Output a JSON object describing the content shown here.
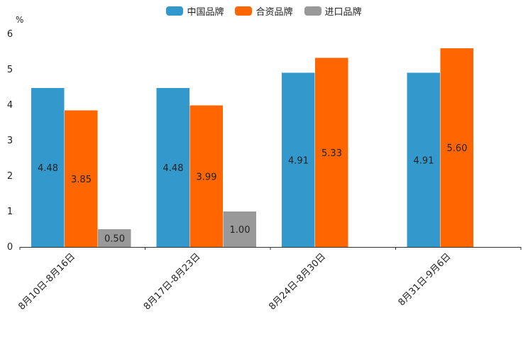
{
  "chart_data": {
    "type": "bar",
    "title": "",
    "xlabel": "",
    "ylabel": "%",
    "ylim": [
      0,
      6
    ],
    "yticks": [
      0,
      1,
      2,
      3,
      4,
      5,
      6
    ],
    "categories": [
      "8月10日-8月16日",
      "8月17日-8月23日",
      "8月24日-8月30日",
      "8月31日-9月6日"
    ],
    "series": [
      {
        "name": "中国品牌",
        "color": "#3399cc",
        "values": [
          4.48,
          4.48,
          4.91,
          4.91
        ],
        "labels": [
          "4.48",
          "4.48",
          "4.91",
          "4.91"
        ]
      },
      {
        "name": "合资品牌",
        "color": "#ff6600",
        "values": [
          3.85,
          3.99,
          5.33,
          5.6
        ],
        "labels": [
          "3.85",
          "3.99",
          "5.33",
          "5.60"
        ]
      },
      {
        "name": "进口品牌",
        "color": "#999999",
        "values": [
          0.5,
          1.0,
          null,
          null
        ],
        "labels": [
          "0.50",
          "1.00",
          null,
          null
        ]
      }
    ],
    "legend_position": "top-center",
    "grid": false
  }
}
